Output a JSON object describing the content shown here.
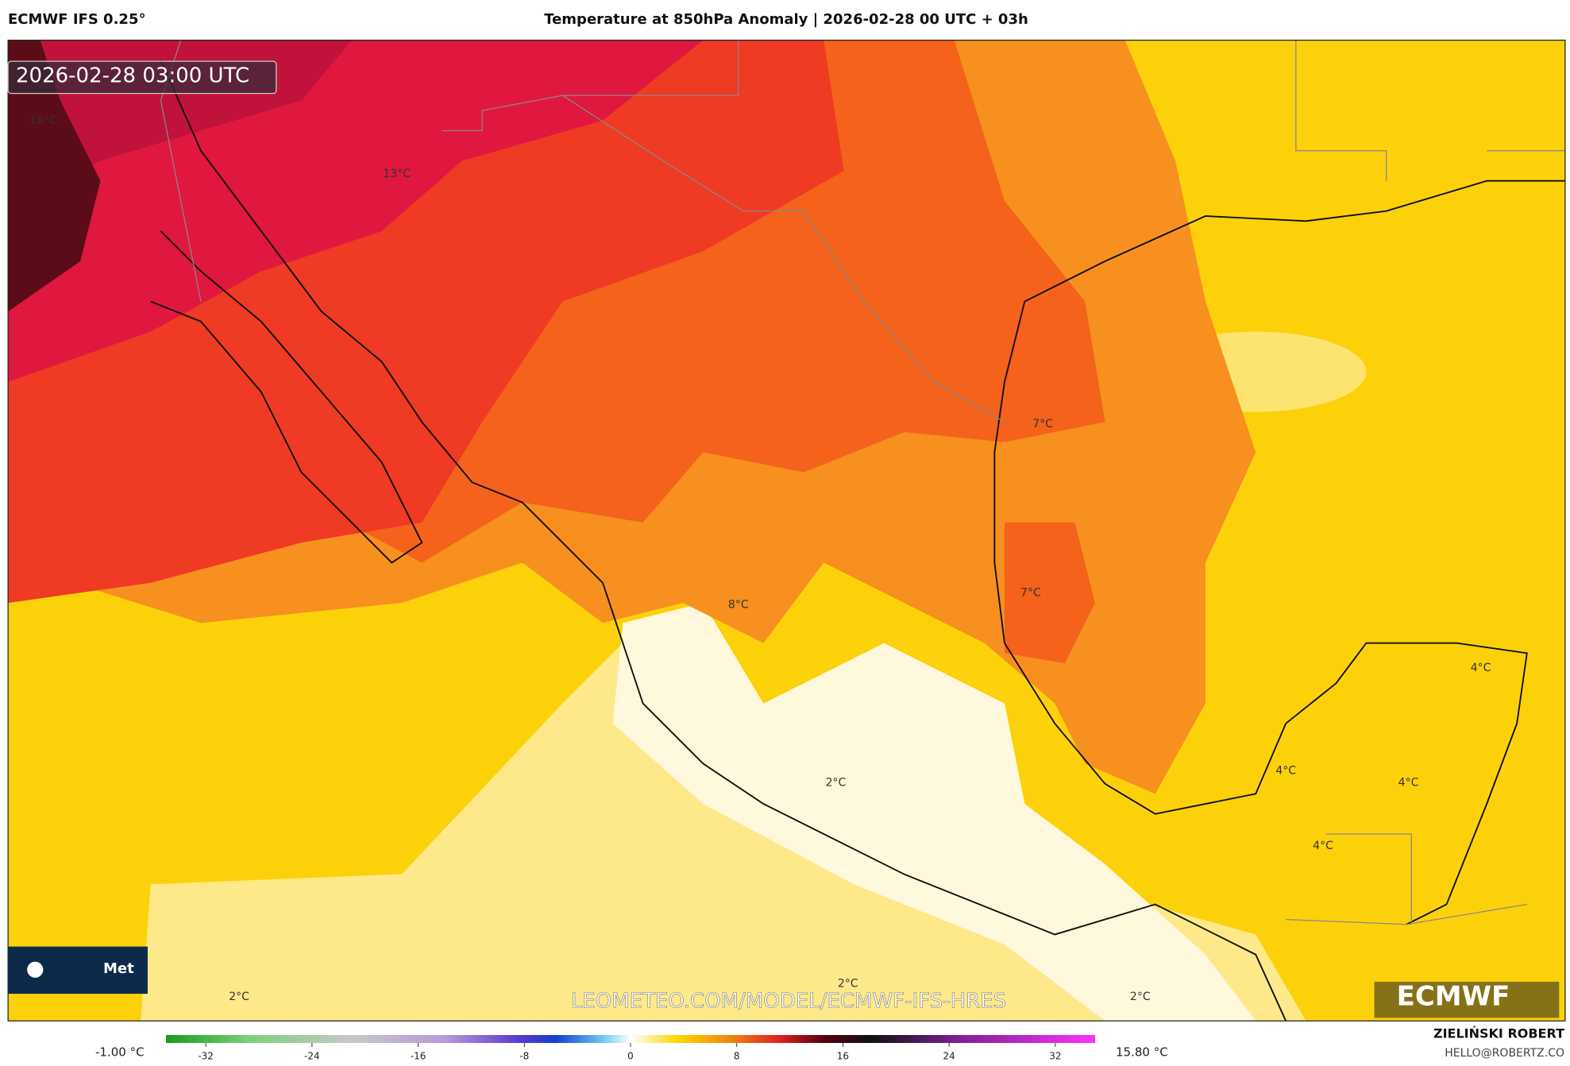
{
  "header": {
    "left": "ECMWF IFS 0.25°",
    "title": "Temperature at 850hPa Anomaly | 2026-02-28 00 UTC + 03h"
  },
  "map": {
    "timestamp": "2026-02-28 03:00 UTC",
    "labels": [
      "16°C",
      "13°C",
      "7°C",
      "7°C",
      "8°C",
      "4°C",
      "4°C",
      "4°C",
      "4°C",
      "2°C",
      "2°C",
      "2°C",
      "2°C"
    ],
    "watermark": "LEOMETEO.COM/MODEL/ECMWF-IFS-HRES",
    "logo_left": "Met",
    "logo_right": "ECMWF"
  },
  "colorbar": {
    "min_label": "-1.00 °C",
    "max_label": "15.80 °C",
    "range": [
      -35,
      35
    ],
    "ticks": [
      -32,
      -24,
      -16,
      -8,
      0,
      8,
      16,
      24,
      32
    ]
  },
  "footer": {
    "author": "ZIELIŃSKI ROBERT",
    "email": "HELLO@ROBERTZ.CO"
  }
}
